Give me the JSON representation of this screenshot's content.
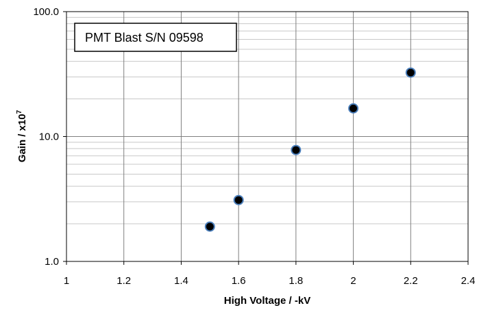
{
  "chart_data": {
    "type": "scatter",
    "annotation": "PMT Blast S/N 09598",
    "xlabel": "High Voltage  /  -kV",
    "ylabel_main": "Gain  /  x10",
    "ylabel_sup": "7",
    "xlim": [
      1,
      2.4
    ],
    "ylim": [
      1,
      100
    ],
    "yscale": "log",
    "grid": true,
    "x_ticks": [
      "1",
      "1.2",
      "1.4",
      "1.6",
      "1.8",
      "2",
      "2.2",
      "2.4"
    ],
    "y_ticks": [
      "1.0",
      "10.0",
      "100.0"
    ],
    "series": [
      {
        "x": [
          1.5,
          1.6,
          1.8,
          2.0,
          2.2
        ],
        "y": [
          1.9,
          3.1,
          7.8,
          16.8,
          32.5
        ]
      }
    ],
    "marker_color": "#000000",
    "marker_edge_color": "#4a7ebb"
  }
}
